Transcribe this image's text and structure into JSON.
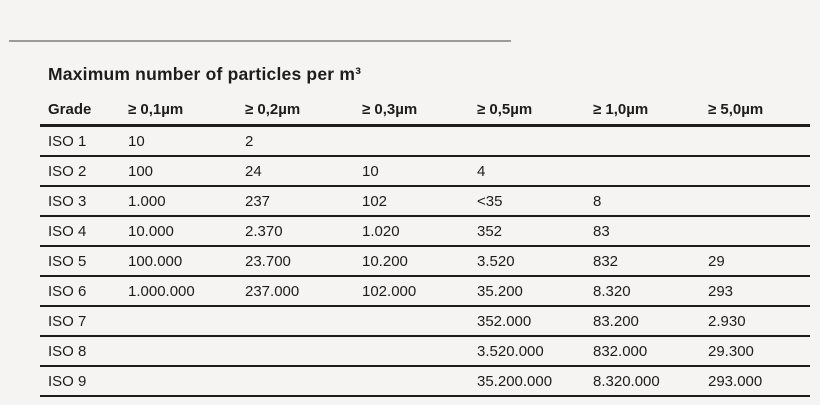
{
  "page": {
    "background_color": "#f5f4f2",
    "text_color": "#1d1d1b",
    "rule_color": "#9b9b9a",
    "grid_line_color": "#1d1d1b"
  },
  "chart_data": {
    "type": "table",
    "title": "Maximum number of particles per m³",
    "columns": [
      "Grade",
      "≥ 0,1µm",
      "≥ 0,2µm",
      "≥ 0,3µm",
      "≥ 0,5µm",
      "≥ 1,0µm",
      "≥ 5,0µm"
    ],
    "rows": [
      [
        "ISO 1",
        "10",
        "2",
        "",
        "",
        "",
        ""
      ],
      [
        "ISO 2",
        "100",
        "24",
        "10",
        "4",
        "",
        ""
      ],
      [
        "ISO 3",
        "1.000",
        "237",
        "102",
        "<35",
        "8",
        ""
      ],
      [
        "ISO 4",
        "10.000",
        "2.370",
        "1.020",
        "352",
        "83",
        ""
      ],
      [
        "ISO 5",
        "100.000",
        "23.700",
        "10.200",
        "3.520",
        "832",
        "29"
      ],
      [
        "ISO 6",
        "1.000.000",
        "237.000",
        "102.000",
        "35.200",
        "8.320",
        "293"
      ],
      [
        "ISO 7",
        "",
        "",
        "",
        "352.000",
        "83.200",
        "2.930"
      ],
      [
        "ISO 8",
        "",
        "",
        "",
        "3.520.000",
        "832.000",
        "29.300"
      ],
      [
        "ISO 9",
        "",
        "",
        "",
        "35.200.000",
        "8.320.000",
        "293.000"
      ]
    ],
    "layout": {
      "header_rule": "thick",
      "row_rules": "thin",
      "alignment": "left"
    }
  }
}
